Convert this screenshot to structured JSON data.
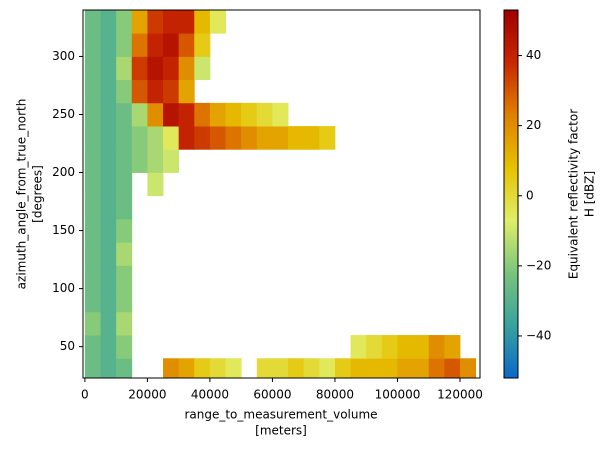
{
  "chart_data": {
    "type": "heatmap",
    "xlabel": [
      "range_to_measurement_volume",
      "[meters]"
    ],
    "ylabel": [
      "azimuth_angle_from_true_north",
      "[degrees]"
    ],
    "colorbar_label": [
      "Equivalent reflectivity factor",
      "H [dBZ]"
    ],
    "xlim": [
      -600,
      126400
    ],
    "xticks": [
      0,
      20000,
      40000,
      60000,
      80000,
      100000,
      120000
    ],
    "ylim": [
      23,
      340
    ],
    "yticks": [
      50,
      100,
      150,
      200,
      250,
      300
    ],
    "clim": [
      -52,
      53
    ],
    "cticks": [
      {
        "value": -40,
        "label": "−40"
      },
      {
        "value": -20,
        "label": "−20"
      },
      0,
      20,
      40
    ],
    "colormap": [
      "#0a68c8",
      "#3aa29e",
      "#79c47c",
      "#e0ee68",
      "#e6c200",
      "#e08000",
      "#c82800",
      "#a00000"
    ],
    "xedges": [
      0,
      5000,
      10000,
      15000,
      20000,
      25000,
      30000,
      35000,
      40000,
      45000,
      50000,
      55000,
      60000,
      65000,
      70000,
      75000,
      80000,
      85000,
      90000,
      95000,
      100000,
      105000,
      110000,
      115000,
      120000,
      125000
    ],
    "yedges": [
      23,
      40,
      60,
      80,
      100,
      120,
      140,
      160,
      180,
      200,
      220,
      240,
      260,
      280,
      300,
      320,
      340
    ],
    "z": [
      [
        -25,
        -30,
        -25,
        null,
        null,
        20,
        15,
        5,
        0,
        -5,
        null,
        0,
        0,
        5,
        0,
        -5,
        5,
        10,
        10,
        10,
        15,
        15,
        25,
        30,
        20
      ],
      [
        -25,
        -30,
        -20,
        null,
        null,
        null,
        null,
        null,
        null,
        null,
        null,
        null,
        null,
        null,
        null,
        null,
        null,
        -5,
        0,
        5,
        10,
        10,
        20,
        15,
        null
      ],
      [
        -20,
        -30,
        -15,
        null,
        null,
        null,
        null,
        null,
        null,
        null,
        null,
        null,
        null,
        null,
        null,
        null,
        null,
        null,
        null,
        null,
        null,
        null,
        null,
        null,
        null
      ],
      [
        -25,
        -30,
        -20,
        null,
        null,
        null,
        null,
        null,
        null,
        null,
        null,
        null,
        null,
        null,
        null,
        null,
        null,
        null,
        null,
        null,
        null,
        null,
        null,
        null,
        null
      ],
      [
        -25,
        -30,
        -20,
        null,
        null,
        null,
        null,
        null,
        null,
        null,
        null,
        null,
        null,
        null,
        null,
        null,
        null,
        null,
        null,
        null,
        null,
        null,
        null,
        null,
        null
      ],
      [
        -25,
        -30,
        -15,
        null,
        null,
        null,
        null,
        null,
        null,
        null,
        null,
        null,
        null,
        null,
        null,
        null,
        null,
        null,
        null,
        null,
        null,
        null,
        null,
        null,
        null
      ],
      [
        -25,
        -30,
        -20,
        null,
        null,
        null,
        null,
        null,
        null,
        null,
        null,
        null,
        null,
        null,
        null,
        null,
        null,
        null,
        null,
        null,
        null,
        null,
        null,
        null,
        null
      ],
      [
        -25,
        -30,
        -25,
        null,
        null,
        null,
        null,
        null,
        null,
        null,
        null,
        null,
        null,
        null,
        null,
        null,
        null,
        null,
        null,
        null,
        null,
        null,
        null,
        null,
        null
      ],
      [
        -25,
        -30,
        -25,
        null,
        -10,
        null,
        null,
        null,
        null,
        null,
        null,
        null,
        null,
        null,
        null,
        null,
        null,
        null,
        null,
        null,
        null,
        null,
        null,
        null,
        null
      ],
      [
        -25,
        -30,
        -25,
        -20,
        -15,
        -10,
        null,
        null,
        null,
        null,
        null,
        null,
        null,
        null,
        null,
        null,
        null,
        null,
        null,
        null,
        null,
        null,
        null,
        null,
        null
      ],
      [
        -25,
        -30,
        -25,
        -20,
        -15,
        -5,
        40,
        35,
        30,
        25,
        20,
        15,
        15,
        10,
        10,
        5,
        null,
        null,
        null,
        null,
        null,
        null,
        null,
        null,
        null
      ],
      [
        -25,
        -30,
        -25,
        -15,
        20,
        45,
        40,
        25,
        15,
        10,
        5,
        0,
        -5,
        null,
        null,
        null,
        null,
        null,
        null,
        null,
        null,
        null,
        null,
        null,
        null
      ],
      [
        -25,
        -30,
        -20,
        30,
        40,
        35,
        15,
        null,
        null,
        null,
        null,
        null,
        null,
        null,
        null,
        null,
        null,
        null,
        null,
        null,
        null,
        null,
        null,
        null,
        null
      ],
      [
        -25,
        -30,
        -15,
        35,
        45,
        40,
        20,
        -10,
        null,
        null,
        null,
        null,
        null,
        null,
        null,
        null,
        null,
        null,
        null,
        null,
        null,
        null,
        null,
        null,
        null
      ],
      [
        -25,
        -30,
        -20,
        25,
        40,
        45,
        30,
        5,
        null,
        null,
        null,
        null,
        null,
        null,
        null,
        null,
        null,
        null,
        null,
        null,
        null,
        null,
        null,
        null,
        null
      ],
      [
        -25,
        -30,
        -20,
        15,
        35,
        40,
        40,
        10,
        -5,
        null,
        null,
        null,
        null,
        null,
        null,
        null,
        null,
        null,
        null,
        null,
        null,
        null,
        null,
        null,
        null
      ]
    ]
  }
}
